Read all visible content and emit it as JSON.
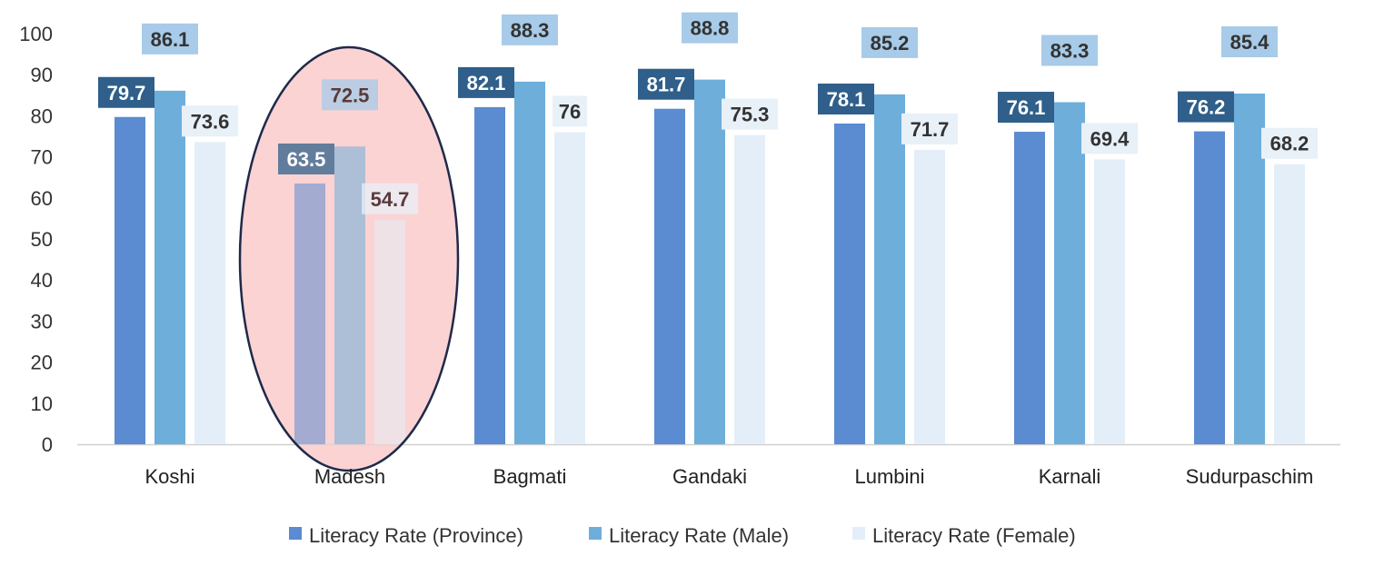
{
  "chart_data": {
    "type": "bar",
    "title": "",
    "xlabel": "",
    "ylabel": "",
    "ylim": [
      0,
      100
    ],
    "yticks": [
      0,
      10,
      20,
      30,
      40,
      50,
      60,
      70,
      80,
      90,
      100
    ],
    "grid": false,
    "legend_position": "bottom",
    "categories": [
      "Koshi",
      "Madesh",
      "Bagmati",
      "Gandaki",
      "Lumbini",
      "Karnali",
      "Sudurpaschim"
    ],
    "series": [
      {
        "name": "Literacy Rate (Province)",
        "color": "#5b8bd0",
        "label_bg": "#2f5f8a",
        "label_color": "#ffffff",
        "values": [
          79.7,
          63.5,
          82.1,
          81.7,
          78.1,
          76.1,
          76.2
        ]
      },
      {
        "name": "Literacy Rate (Male)",
        "color": "#6eaedb",
        "label_bg": "#a7cbe8",
        "label_color": "#333333",
        "values": [
          86.1,
          72.5,
          88.3,
          88.8,
          85.2,
          83.3,
          85.4
        ]
      },
      {
        "name": "Literacy Rate (Female)",
        "color": "#e4eef8",
        "label_bg": "#e8f0f8",
        "label_color": "#333333",
        "values": [
          73.6,
          54.7,
          76,
          75.3,
          71.7,
          69.4,
          68.2
        ]
      }
    ],
    "highlight": {
      "category": "Madesh",
      "shape": "ellipse",
      "fill": "#fbd3d3",
      "stroke": "#1f2a4a"
    }
  }
}
